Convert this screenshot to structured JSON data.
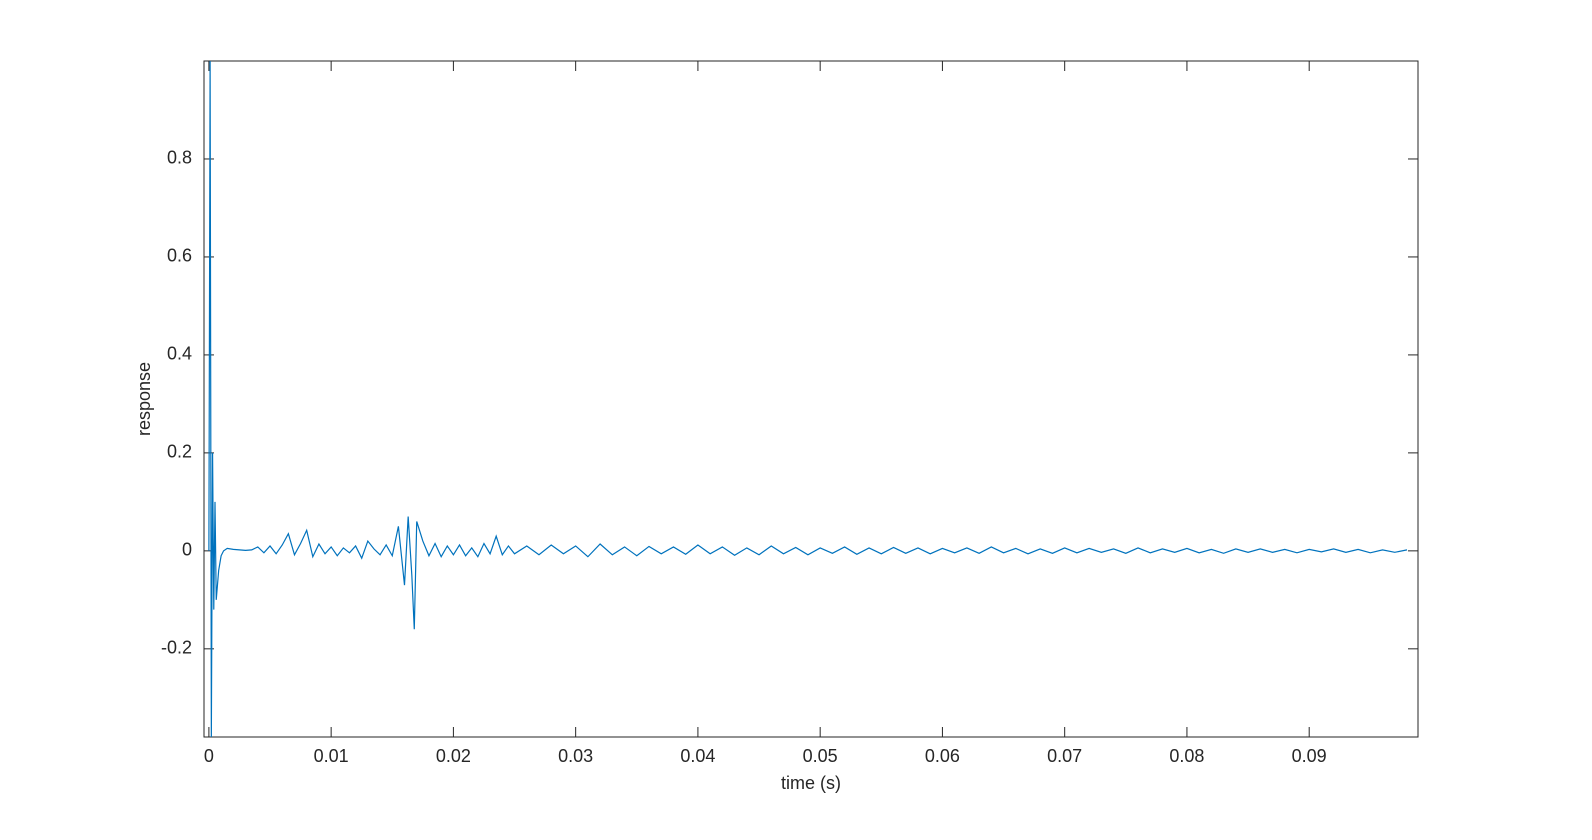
{
  "chart_data": {
    "type": "line",
    "xlabel": "time (s)",
    "ylabel": "response",
    "xlim": [
      -0.0004,
      0.0989
    ],
    "ylim": [
      -0.38,
      1.0
    ],
    "xticks": [
      0,
      0.01,
      0.02,
      0.03,
      0.04,
      0.05,
      0.06,
      0.07,
      0.08,
      0.09
    ],
    "yticks": [
      -0.2,
      0,
      0.2,
      0.4,
      0.6,
      0.8
    ],
    "grid": false,
    "x": [
      0,
      0.0001,
      0.0002,
      0.0003,
      0.0004,
      0.0005,
      0.0006,
      0.0008,
      0.001,
      0.0012,
      0.0015,
      0.002,
      0.0025,
      0.003,
      0.0035,
      0.004,
      0.0045,
      0.005,
      0.0055,
      0.006,
      0.0065,
      0.007,
      0.0075,
      0.008,
      0.0085,
      0.009,
      0.0095,
      0.01,
      0.0105,
      0.011,
      0.0115,
      0.012,
      0.0125,
      0.013,
      0.0135,
      0.014,
      0.0145,
      0.015,
      0.0155,
      0.016,
      0.0163,
      0.0166,
      0.0168,
      0.017,
      0.0175,
      0.018,
      0.0185,
      0.019,
      0.0195,
      0.02,
      0.0205,
      0.021,
      0.0215,
      0.022,
      0.0225,
      0.023,
      0.0235,
      0.024,
      0.0245,
      0.025,
      0.026,
      0.027,
      0.028,
      0.029,
      0.03,
      0.031,
      0.032,
      0.033,
      0.034,
      0.035,
      0.036,
      0.037,
      0.038,
      0.039,
      0.04,
      0.041,
      0.042,
      0.043,
      0.044,
      0.045,
      0.046,
      0.047,
      0.048,
      0.049,
      0.05,
      0.051,
      0.052,
      0.053,
      0.054,
      0.055,
      0.056,
      0.057,
      0.058,
      0.059,
      0.06,
      0.061,
      0.062,
      0.063,
      0.064,
      0.065,
      0.066,
      0.067,
      0.068,
      0.069,
      0.07,
      0.071,
      0.072,
      0.073,
      0.074,
      0.075,
      0.076,
      0.077,
      0.078,
      0.079,
      0.08,
      0.081,
      0.082,
      0.083,
      0.084,
      0.085,
      0.086,
      0.087,
      0.088,
      0.089,
      0.09,
      0.091,
      0.092,
      0.093,
      0.094,
      0.095,
      0.096,
      0.097,
      0.098
    ],
    "series": [
      {
        "color": "#0072bd",
        "values": [
          0,
          1.0,
          -0.38,
          0.2,
          -0.12,
          0.1,
          -0.1,
          -0.04,
          -0.01,
          0.0,
          0.005,
          0.003,
          0.002,
          0.001,
          0.002,
          0.008,
          -0.004,
          0.01,
          -0.006,
          0.012,
          0.035,
          -0.008,
          0.015,
          0.042,
          -0.012,
          0.014,
          -0.006,
          0.008,
          -0.01,
          0.006,
          -0.004,
          0.01,
          -0.015,
          0.02,
          0.004,
          -0.008,
          0.012,
          -0.01,
          0.05,
          -0.07,
          0.07,
          -0.05,
          -0.16,
          0.06,
          0.02,
          -0.01,
          0.015,
          -0.012,
          0.01,
          -0.008,
          0.012,
          -0.01,
          0.006,
          -0.012,
          0.015,
          -0.006,
          0.03,
          -0.008,
          0.01,
          -0.006,
          0.01,
          -0.008,
          0.012,
          -0.006,
          0.01,
          -0.012,
          0.014,
          -0.008,
          0.008,
          -0.01,
          0.009,
          -0.006,
          0.008,
          -0.007,
          0.012,
          -0.006,
          0.008,
          -0.009,
          0.006,
          -0.008,
          0.01,
          -0.006,
          0.007,
          -0.008,
          0.006,
          -0.005,
          0.008,
          -0.007,
          0.006,
          -0.006,
          0.007,
          -0.005,
          0.006,
          -0.006,
          0.005,
          -0.004,
          0.006,
          -0.005,
          0.008,
          -0.004,
          0.005,
          -0.006,
          0.004,
          -0.005,
          0.006,
          -0.004,
          0.005,
          -0.003,
          0.004,
          -0.005,
          0.006,
          -0.004,
          0.004,
          -0.003,
          0.005,
          -0.004,
          0.003,
          -0.005,
          0.004,
          -0.003,
          0.004,
          -0.003,
          0.003,
          -0.004,
          0.003,
          -0.002,
          0.004,
          -0.003,
          0.003,
          -0.004,
          0.002,
          -0.003,
          0.002
        ]
      }
    ]
  }
}
